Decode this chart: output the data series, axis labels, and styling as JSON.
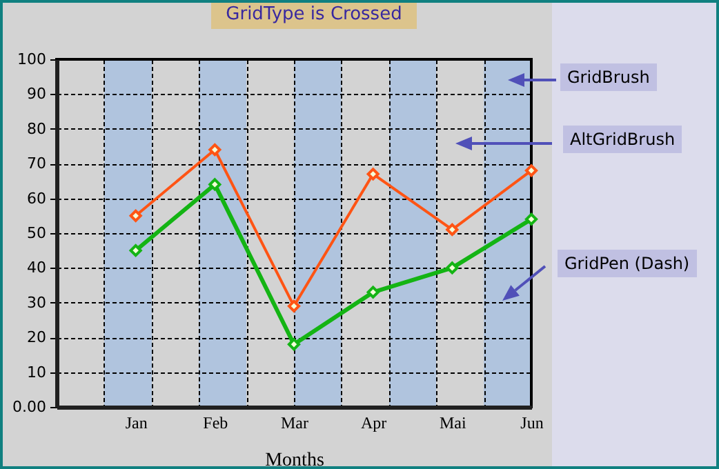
{
  "chart_data": {
    "type": "line",
    "title": "GridType is Crossed",
    "xlabel": "Months",
    "categories": [
      "Jan",
      "Feb",
      "Mar",
      "Apr",
      "Mai",
      "Jun"
    ],
    "series": [
      {
        "color": "#ff5414",
        "values": [
          55,
          74,
          29,
          67,
          51,
          68
        ]
      },
      {
        "color": "#14b414",
        "values": [
          45,
          64,
          18,
          33,
          40,
          54
        ]
      }
    ],
    "ylim": [
      0,
      100
    ],
    "yticks": [
      {
        "value": 0,
        "label": "0.00"
      },
      10,
      20,
      30,
      40,
      50,
      60,
      70,
      80,
      90,
      100
    ],
    "grid": true,
    "marker": "diamond",
    "line_style": "solid",
    "annotations": [
      "GridBrush",
      "AltGridBrush",
      "GridPen (Dash)"
    ]
  }
}
